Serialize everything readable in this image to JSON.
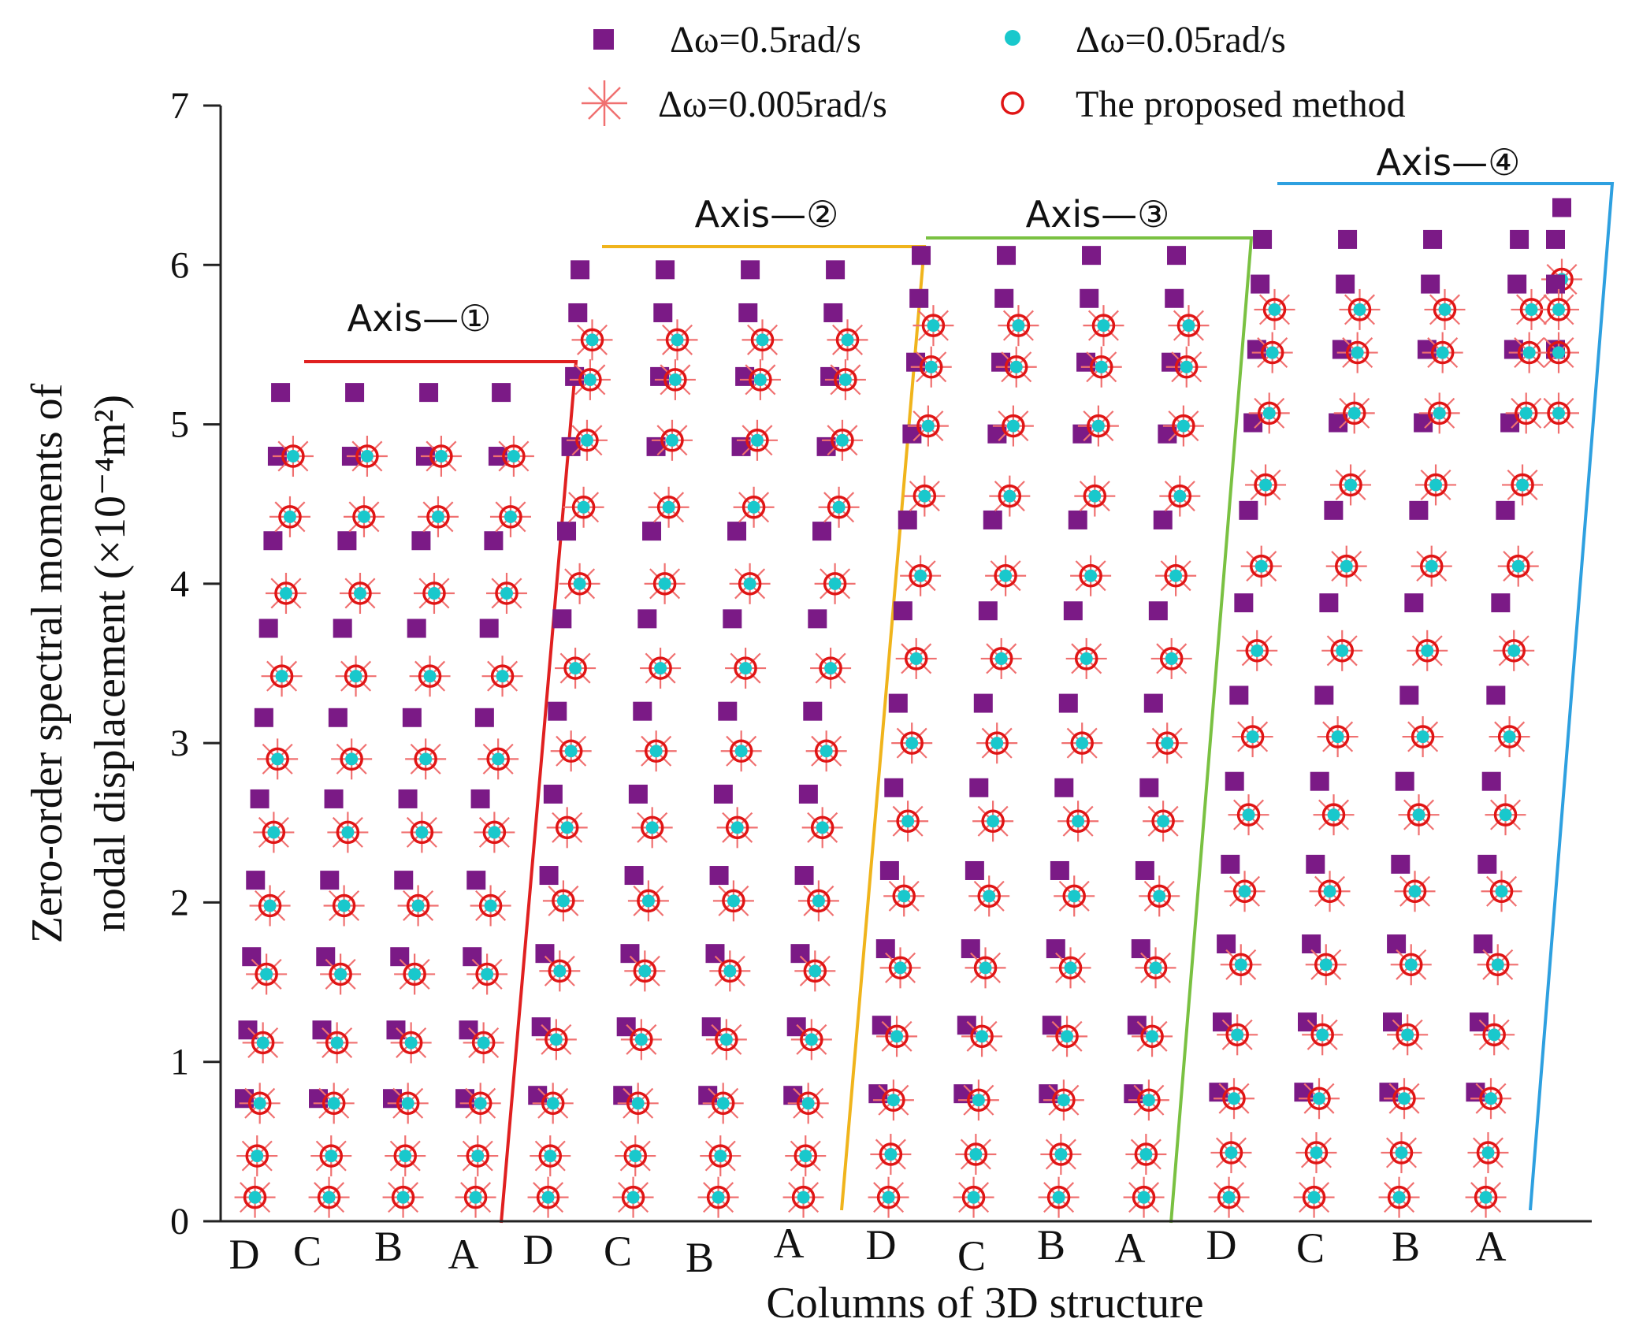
{
  "chart_data": {
    "type": "scatter",
    "title": "",
    "xlabel": "Columns of  3D structure",
    "ylabel_lines": [
      "Zero-order spectral moments of",
      "nodal displacement (×10⁻⁴m²)"
    ],
    "ylim": [
      0,
      7
    ],
    "yticks": [
      0,
      1,
      2,
      3,
      4,
      5,
      6,
      7
    ],
    "legend_position": "top",
    "categories": [
      "D",
      "C",
      "B",
      "A",
      "D",
      "C",
      "B",
      "A",
      "D",
      "C",
      "B",
      "A",
      "D",
      "C",
      "B",
      "A"
    ],
    "series": [
      {
        "name": "Δω=0.5rad/s",
        "marker": "square",
        "color": "#7b1a86"
      },
      {
        "name": "Δω=0.05rad/s",
        "marker": "dot",
        "color": "#19c8cc"
      },
      {
        "name": "Δω=0.005rad/s",
        "marker": "asterisk",
        "color": "#f07070"
      },
      {
        "name": "The proposed method",
        "marker": "circle",
        "color": "#e01515"
      }
    ],
    "groups": [
      {
        "label": "Axis—①",
        "color": "#e02020",
        "columns": [
          "D",
          "C",
          "B",
          "A"
        ],
        "square_values": [
          5.2,
          4.8,
          4.27,
          3.72,
          3.16,
          2.65,
          2.14,
          1.66,
          1.2,
          0.77
        ],
        "overlay_values": [
          4.8,
          4.42,
          3.94,
          3.42,
          2.9,
          2.44,
          1.98,
          1.55,
          1.12,
          0.74,
          0.41,
          0.15
        ]
      },
      {
        "label": "Axis—②",
        "color": "#f0b41c",
        "columns": [
          "D",
          "C",
          "B",
          "A"
        ],
        "square_values": [
          5.97,
          5.7,
          5.3,
          4.86,
          4.33,
          3.78,
          3.2,
          2.68,
          2.17,
          1.68,
          1.22,
          0.79
        ],
        "overlay_values": [
          5.53,
          5.28,
          4.9,
          4.48,
          4.0,
          3.47,
          2.95,
          2.47,
          2.01,
          1.57,
          1.14,
          0.74,
          0.41,
          0.15
        ]
      },
      {
        "label": "Axis—③",
        "color": "#7ac142",
        "columns": [
          "D",
          "C",
          "B",
          "A"
        ],
        "square_values": [
          6.06,
          5.79,
          5.39,
          4.94,
          4.4,
          3.83,
          3.25,
          2.72,
          2.2,
          1.71,
          1.23,
          0.8
        ],
        "overlay_values": [
          5.62,
          5.36,
          4.99,
          4.55,
          4.05,
          3.53,
          3.0,
          2.51,
          2.04,
          1.59,
          1.16,
          0.76,
          0.42,
          0.15
        ]
      },
      {
        "label": "Axis—④",
        "color": "#2ea0e0",
        "columns": [
          "D",
          "C",
          "B",
          "A"
        ],
        "square_values": [
          6.16,
          5.88,
          5.47,
          5.01,
          4.46,
          3.88,
          3.3,
          2.76,
          2.24,
          1.74,
          1.25,
          0.81
        ],
        "overlay_values": [
          5.72,
          5.45,
          5.07,
          4.62,
          4.11,
          3.58,
          3.04,
          2.55,
          2.07,
          1.61,
          1.17,
          0.77,
          0.43,
          0.15
        ],
        "extra_column_A_squares": [
          6.36
        ],
        "extra_column_A_overlays": [
          5.91
        ]
      }
    ]
  }
}
